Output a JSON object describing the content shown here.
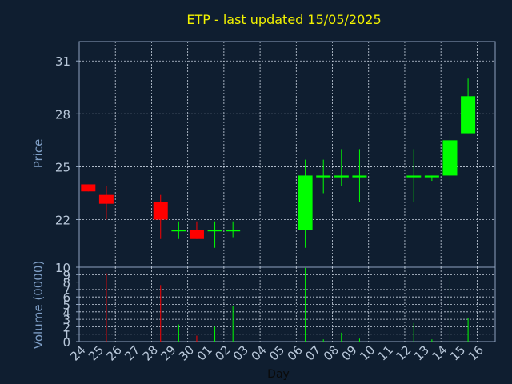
{
  "title": "ETP - last updated 15/05/2025",
  "colors": {
    "background": "#0f1e30",
    "axis": "#8fa3bf",
    "grid": "#c8d2df",
    "title": "#f2f200",
    "label": "#7f9fc6",
    "tick": "#b9c8da",
    "up": "#00ff00",
    "down": "#ff0000"
  },
  "chart_data": [
    {
      "type": "candlestick",
      "ylabel": "Price",
      "ylim": [
        19.3,
        32.1
      ],
      "yticks": [
        22,
        25,
        28,
        31
      ],
      "grid": true,
      "categories": [
        "24",
        "25",
        "26",
        "27",
        "28",
        "29",
        "30",
        "01",
        "02",
        "03",
        "04",
        "05",
        "06",
        "07",
        "08",
        "09",
        "10",
        "11",
        "12",
        "13",
        "14",
        "15",
        "16"
      ],
      "candles": [
        {
          "day": "24",
          "open": 24.0,
          "high": 24.0,
          "low": 23.6,
          "close": 23.6
        },
        {
          "day": "25",
          "open": 23.4,
          "high": 23.9,
          "low": 22.0,
          "close": 22.9
        },
        {
          "day": "28",
          "open": 23.0,
          "high": 23.4,
          "low": 20.9,
          "close": 22.0
        },
        {
          "day": "29",
          "open": 21.4,
          "high": 21.9,
          "low": 20.9,
          "close": 21.4
        },
        {
          "day": "30",
          "open": 21.4,
          "high": 21.9,
          "low": 20.9,
          "close": 20.9
        },
        {
          "day": "01",
          "open": 21.4,
          "high": 21.9,
          "low": 20.4,
          "close": 21.4
        },
        {
          "day": "02",
          "open": 21.4,
          "high": 21.9,
          "low": 21.0,
          "close": 21.4
        },
        {
          "day": "06",
          "open": 21.4,
          "high": 25.4,
          "low": 20.4,
          "close": 24.5
        },
        {
          "day": "07",
          "open": 24.4,
          "high": 25.4,
          "low": 23.5,
          "close": 24.5
        },
        {
          "day": "08",
          "open": 24.4,
          "high": 26.0,
          "low": 23.9,
          "close": 24.5
        },
        {
          "day": "09",
          "open": 24.4,
          "high": 26.0,
          "low": 23.0,
          "close": 24.5
        },
        {
          "day": "12",
          "open": 24.4,
          "high": 26.0,
          "low": 23.0,
          "close": 24.5
        },
        {
          "day": "13",
          "open": 24.4,
          "high": 24.5,
          "low": 24.2,
          "close": 24.5
        },
        {
          "day": "14",
          "open": 24.5,
          "high": 27.0,
          "low": 24.0,
          "close": 26.5
        },
        {
          "day": "15",
          "open": 26.9,
          "high": 30.0,
          "low": 26.9,
          "close": 29.0
        }
      ]
    },
    {
      "type": "bar",
      "ylabel": "Volume (0000)",
      "xlabel": "Day",
      "ylim": [
        0,
        10
      ],
      "yticks": [
        0,
        1,
        2,
        3,
        4,
        5,
        6,
        7,
        8,
        9,
        10
      ],
      "yticklabels": [
        "0",
        "1",
        "2",
        "3",
        "4",
        "5",
        "6",
        "7",
        "8",
        "9",
        "10"
      ],
      "grid": true,
      "categories": [
        "24",
        "25",
        "26",
        "27",
        "28",
        "29",
        "30",
        "01",
        "02",
        "03",
        "04",
        "05",
        "06",
        "07",
        "08",
        "09",
        "10",
        "11",
        "12",
        "13",
        "14",
        "15",
        "16"
      ],
      "bars": [
        {
          "day": "25",
          "value": 9.2,
          "direction": "down"
        },
        {
          "day": "28",
          "value": 7.6,
          "direction": "down"
        },
        {
          "day": "29",
          "value": 2.3,
          "direction": "up"
        },
        {
          "day": "30",
          "value": 0.8,
          "direction": "down"
        },
        {
          "day": "01",
          "value": 2.0,
          "direction": "up"
        },
        {
          "day": "02",
          "value": 4.8,
          "direction": "up"
        },
        {
          "day": "06",
          "value": 9.9,
          "direction": "up"
        },
        {
          "day": "07",
          "value": 0.3,
          "direction": "up"
        },
        {
          "day": "08",
          "value": 1.2,
          "direction": "up"
        },
        {
          "day": "09",
          "value": 0.4,
          "direction": "up"
        },
        {
          "day": "12",
          "value": 2.5,
          "direction": "up"
        },
        {
          "day": "13",
          "value": 0.3,
          "direction": "up"
        },
        {
          "day": "14",
          "value": 8.9,
          "direction": "up"
        },
        {
          "day": "15",
          "value": 3.2,
          "direction": "up"
        }
      ]
    }
  ]
}
